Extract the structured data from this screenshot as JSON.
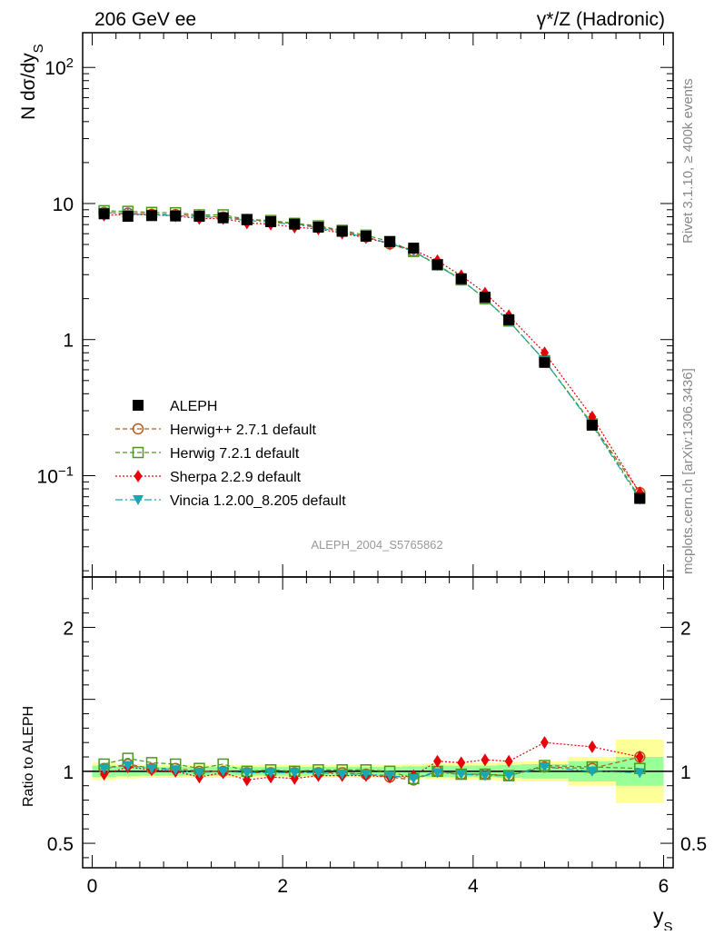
{
  "header": {
    "energy_label": "206 GeV ee",
    "process_label": "γ*/Z (Hadronic)"
  },
  "side_labels": {
    "rivet": "Rivet 3.1.10, ≥ 400k events",
    "mcplots": "mcplots.cern.ch [arXiv:1306.3436]"
  },
  "analysis_label": "ALEPH_2004_S5765862",
  "chart_data": [
    {
      "type": "scatter",
      "panel": "main",
      "ylabel": "N dσ/dy_S",
      "yscale": "log",
      "xlim": [
        -0.1,
        6.1
      ],
      "ylim": [
        0.018,
        180
      ],
      "y_ticks": [
        {
          "value": 100,
          "label": "10",
          "sup": "2"
        },
        {
          "value": 10,
          "label": "10",
          "sup": ""
        },
        {
          "value": 1,
          "label": "1",
          "sup": ""
        },
        {
          "value": 0.1,
          "label": "10",
          "sup": "−1"
        }
      ],
      "x": [
        0.125,
        0.375,
        0.625,
        0.875,
        1.125,
        1.375,
        1.625,
        1.875,
        2.125,
        2.375,
        2.625,
        2.875,
        3.125,
        3.375,
        3.625,
        3.875,
        4.125,
        4.375,
        4.75,
        5.25,
        5.75
      ],
      "series": [
        {
          "name": "ALEPH",
          "color": "#000000",
          "values": [
            8.4,
            8.05,
            8.15,
            8.1,
            8.05,
            7.85,
            7.6,
            7.35,
            7.05,
            6.7,
            6.25,
            5.75,
            5.25,
            4.7,
            3.55,
            2.8,
            2.05,
            1.4,
            0.68,
            0.235,
            0.068
          ]
        },
        {
          "name": "Herwig++ 2.7.1 default",
          "color": "#b35a1f",
          "values": [
            8.6,
            8.5,
            8.35,
            8.3,
            8.1,
            7.95,
            7.65,
            7.4,
            7.1,
            6.75,
            6.25,
            5.7,
            5.05,
            4.45,
            3.55,
            2.75,
            2.0,
            1.37,
            0.7,
            0.24,
            0.075
          ]
        },
        {
          "name": "Herwig 7.2.1 default",
          "color": "#4a9a1a",
          "values": [
            8.85,
            8.75,
            8.6,
            8.55,
            8.25,
            8.25,
            7.65,
            7.5,
            7.15,
            6.85,
            6.35,
            5.85,
            5.25,
            4.45,
            3.55,
            2.75,
            2.0,
            1.37,
            0.7,
            0.24,
            0.069
          ]
        },
        {
          "name": "Sherpa 2.2.9 default",
          "color": "#e8000b",
          "values": [
            8.2,
            8.3,
            8.25,
            8.1,
            7.75,
            7.75,
            7.2,
            7.05,
            6.7,
            6.5,
            6.05,
            5.6,
            5.05,
            4.55,
            3.8,
            2.95,
            2.2,
            1.5,
            0.8,
            0.27,
            0.075
          ]
        },
        {
          "name": "Vincia 1.2.00_8.205 default",
          "color": "#1aa7b5",
          "values": [
            8.6,
            8.35,
            8.3,
            8.15,
            8.0,
            7.85,
            7.5,
            7.3,
            7.0,
            6.65,
            6.15,
            5.65,
            5.1,
            4.45,
            3.5,
            2.75,
            2.0,
            1.37,
            0.7,
            0.235,
            0.067
          ]
        }
      ]
    },
    {
      "type": "line",
      "panel": "ratio",
      "ylabel": "Ratio to ALEPH",
      "xlabel": "y_S",
      "ylim": [
        0.33,
        2.35
      ],
      "xlim": [
        -0.1,
        6.1
      ],
      "x_ticks": [
        0,
        2,
        4,
        6
      ],
      "y_ticks": [
        0.5,
        1,
        2
      ],
      "bin_edges": [
        0,
        0.25,
        0.5,
        0.75,
        1,
        1.25,
        1.5,
        1.75,
        2,
        2.25,
        2.5,
        2.75,
        3,
        3.25,
        3.5,
        3.75,
        4,
        4.25,
        4.5,
        5,
        5.5,
        6
      ],
      "band_inner": [
        0.04,
        0.035,
        0.03,
        0.03,
        0.03,
        0.03,
        0.03,
        0.03,
        0.03,
        0.03,
        0.03,
        0.03,
        0.03,
        0.035,
        0.04,
        0.04,
        0.04,
        0.045,
        0.05,
        0.07,
        0.1
      ],
      "band_outer": [
        0.06,
        0.05,
        0.045,
        0.045,
        0.045,
        0.045,
        0.045,
        0.045,
        0.045,
        0.045,
        0.045,
        0.045,
        0.045,
        0.05,
        0.055,
        0.06,
        0.06,
        0.065,
        0.07,
        0.1,
        0.22
      ],
      "x": [
        0.125,
        0.375,
        0.625,
        0.875,
        1.125,
        1.375,
        1.625,
        1.875,
        2.125,
        2.375,
        2.625,
        2.875,
        3.125,
        3.375,
        3.625,
        3.875,
        4.125,
        4.375,
        4.75,
        5.25,
        5.75
      ],
      "series": [
        {
          "name": "Herwig++ 2.7.1 default",
          "color": "#b35a1f",
          "values": [
            1.02,
            1.05,
            1.02,
            1.02,
            1.0,
            1.0,
            0.99,
            0.99,
            0.99,
            0.99,
            0.99,
            0.98,
            0.96,
            0.94,
            1.0,
            0.98,
            0.98,
            0.97,
            1.03,
            1.02,
            1.1
          ]
        },
        {
          "name": "Herwig 7.2.1 default",
          "color": "#4a9a1a",
          "values": [
            1.05,
            1.09,
            1.06,
            1.05,
            1.02,
            1.05,
            1.0,
            1.01,
            1.0,
            1.01,
            1.01,
            1.01,
            1.0,
            0.95,
            1.0,
            0.98,
            0.98,
            0.97,
            1.04,
            1.03,
            1.02
          ]
        },
        {
          "name": "Sherpa 2.2.9 default",
          "color": "#e8000b",
          "values": [
            0.98,
            1.03,
            1.01,
            1.0,
            0.96,
            0.99,
            0.94,
            0.96,
            0.95,
            0.97,
            0.97,
            0.97,
            0.96,
            0.97,
            1.07,
            1.06,
            1.08,
            1.07,
            1.2,
            1.17,
            1.1
          ]
        },
        {
          "name": "Vincia 1.2.00_8.205 default",
          "color": "#1aa7b5",
          "values": [
            1.02,
            1.04,
            1.02,
            1.01,
            0.99,
            1.0,
            0.99,
            0.99,
            0.99,
            0.99,
            0.98,
            0.98,
            0.97,
            0.95,
            0.99,
            0.98,
            0.97,
            0.97,
            1.03,
            1.0,
            0.99
          ]
        }
      ]
    }
  ]
}
